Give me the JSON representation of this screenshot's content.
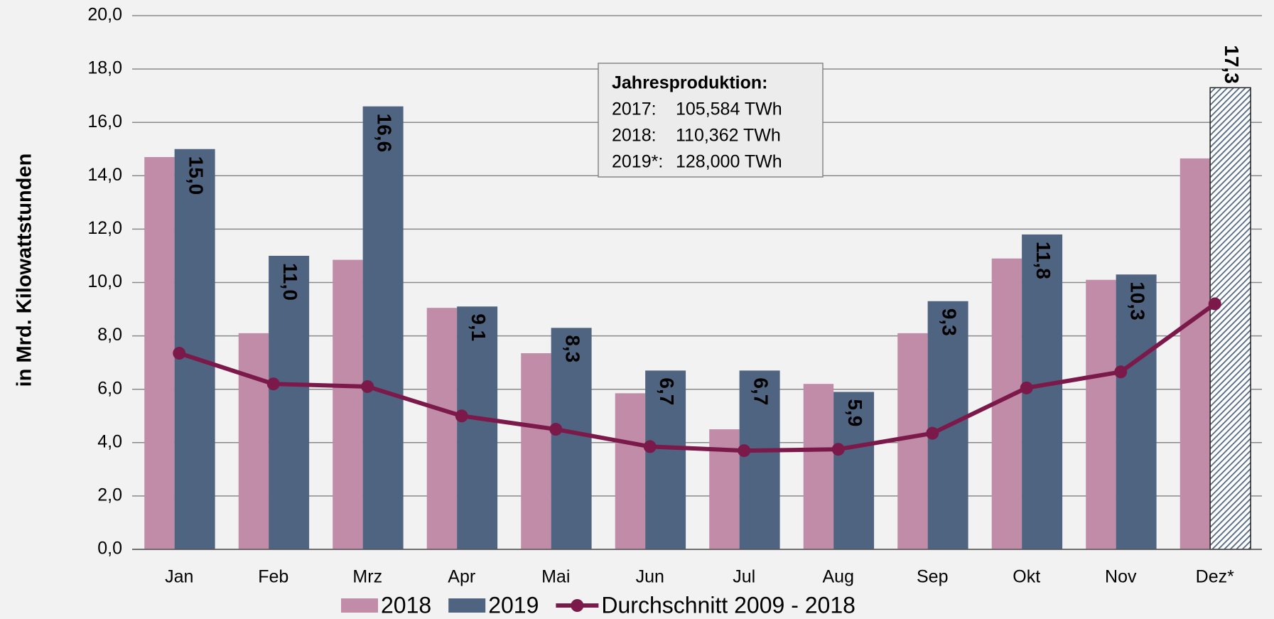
{
  "chart_data": {
    "type": "bar",
    "ylabel": "in Mrd. Kilowattstunden",
    "categories": [
      "Jan",
      "Feb",
      "Mrz",
      "Apr",
      "Mai",
      "Jun",
      "Jul",
      "Aug",
      "Sep",
      "Okt",
      "Nov",
      "Dez*"
    ],
    "series": [
      {
        "name": "2018",
        "color": "#c08ca8",
        "values": [
          14.7,
          8.1,
          10.85,
          9.05,
          7.35,
          5.85,
          4.5,
          6.2,
          8.1,
          10.9,
          10.1,
          14.65
        ]
      },
      {
        "name": "2019",
        "color": "#4f6480",
        "values": [
          15.0,
          11.0,
          16.6,
          9.1,
          8.3,
          6.7,
          6.7,
          5.9,
          9.3,
          11.8,
          10.3,
          17.3
        ],
        "value_labels": [
          "15,0",
          "11,0",
          "16,6",
          "9,1",
          "8,3",
          "6,7",
          "6,7",
          "5,9",
          "9,3",
          "11,8",
          "10,3",
          "17,3"
        ],
        "hatched": [
          false,
          false,
          false,
          false,
          false,
          false,
          false,
          false,
          false,
          false,
          false,
          true
        ]
      },
      {
        "name": "Durchschnitt 2009 - 2018",
        "type": "line",
        "color": "#7b1a4a",
        "values": [
          7.35,
          6.2,
          6.1,
          5.0,
          4.5,
          3.85,
          3.7,
          3.75,
          4.35,
          6.05,
          6.65,
          9.2
        ]
      }
    ],
    "ylim": [
      0,
      20
    ],
    "yticks": [
      {
        "value": 0,
        "label": "0,0"
      },
      {
        "value": 2,
        "label": "2,0"
      },
      {
        "value": 4,
        "label": "4,0"
      },
      {
        "value": 6,
        "label": "6,0"
      },
      {
        "value": 8,
        "label": "8,0"
      },
      {
        "value": 10,
        "label": "10,0"
      },
      {
        "value": 12,
        "label": "12,0"
      },
      {
        "value": 14,
        "label": "14,0"
      },
      {
        "value": 16,
        "label": "16,0"
      },
      {
        "value": 18,
        "label": "18,0"
      },
      {
        "value": 20,
        "label": "20,0"
      }
    ],
    "grid": true,
    "legend": "bottom",
    "annotation": {
      "title": "Jahresproduktion:",
      "lines": [
        [
          "2017:",
          "105,584 TWh"
        ],
        [
          "2018:",
          "110,362 TWh"
        ],
        [
          "2019*:",
          "128,000 TWh"
        ]
      ]
    }
  }
}
